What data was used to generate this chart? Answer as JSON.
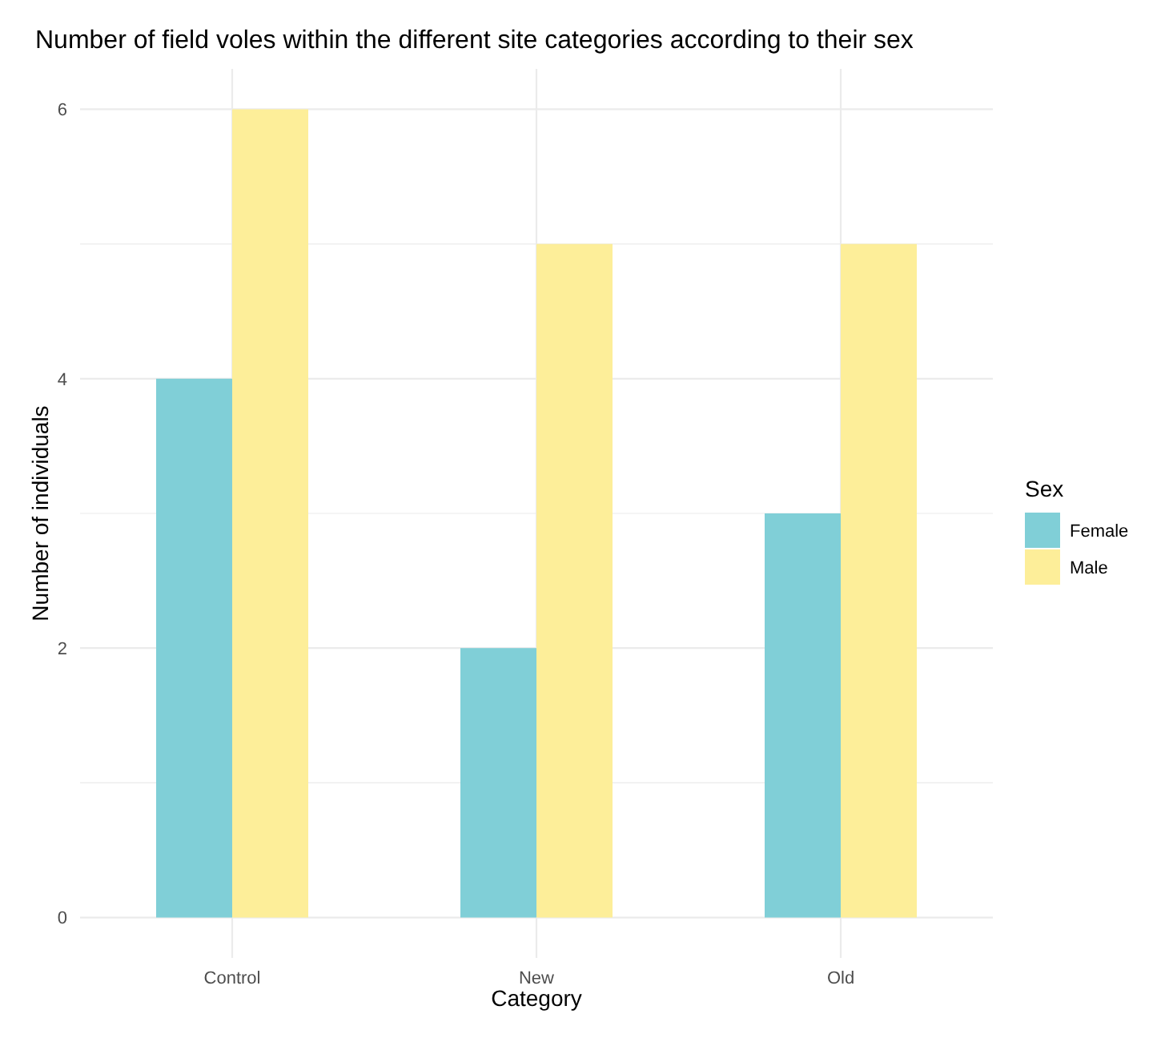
{
  "chart_data": {
    "type": "bar",
    "title": "Number of field voles within the different site categories according to their sex",
    "xlabel": "Category",
    "ylabel": "Number of individuals",
    "legend_title": "Sex",
    "categories": [
      "Control",
      "New",
      "Old"
    ],
    "series": [
      {
        "name": "Female",
        "color": "#80cfd7",
        "values": [
          4,
          2,
          3
        ]
      },
      {
        "name": "Male",
        "color": "#fdee99",
        "values": [
          6,
          5,
          5
        ]
      }
    ],
    "ylim": [
      -0.3,
      6.3
    ],
    "yticks": [
      0,
      {
        "value": 1,
        "label": null
      },
      2,
      {
        "value": 3,
        "label": null
      },
      4,
      {
        "value": 5,
        "label": null
      },
      6
    ],
    "grid": true,
    "legend": "right"
  }
}
